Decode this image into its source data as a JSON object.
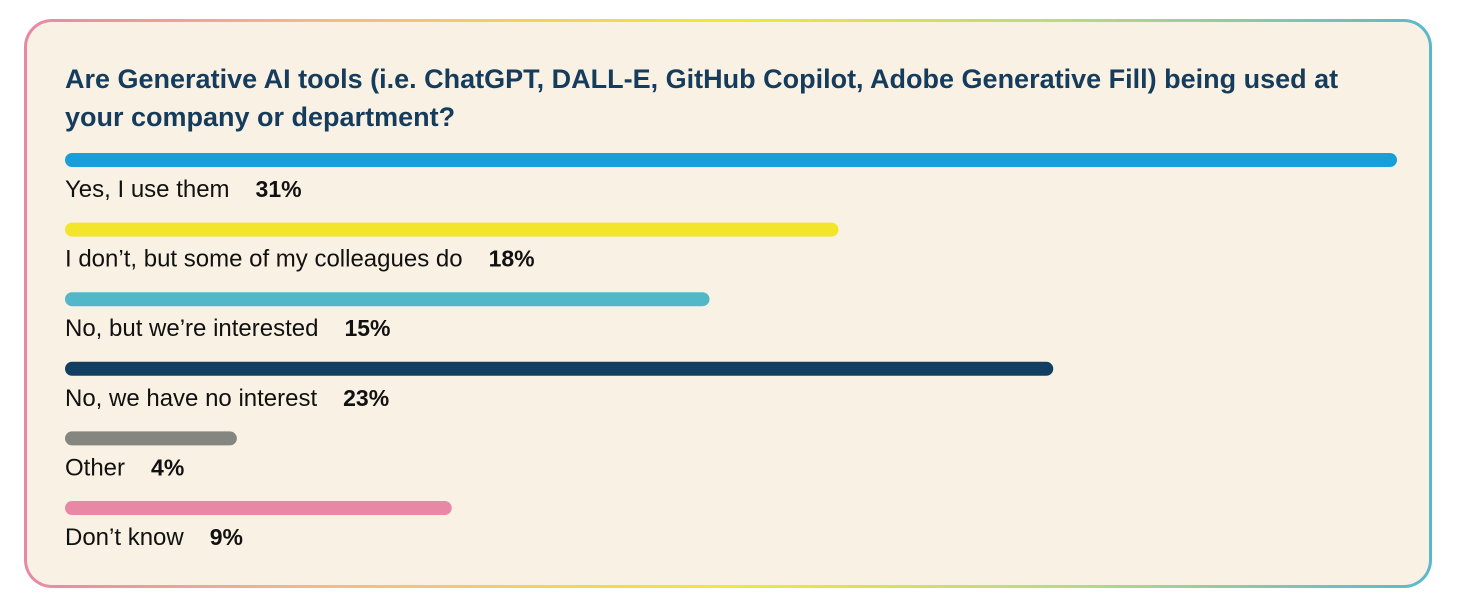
{
  "chart_data": {
    "type": "bar",
    "orientation": "horizontal",
    "title": "Are Generative AI tools (i.e. ChatGPT, DALL-E, GitHub Copilot, Adobe Generative Fill) being used at your company or department?",
    "categories": [
      "Yes, I use them",
      "I don’t, but some of my colleagues do",
      "No, but we’re interested",
      "No, we have no interest",
      "Other",
      "Don’t know"
    ],
    "values": [
      31,
      18,
      15,
      23,
      4,
      9
    ],
    "value_labels": [
      "31%",
      "18%",
      "15%",
      "23%",
      "4%",
      "9%"
    ],
    "unit": "%",
    "colors": [
      "#189fd9",
      "#f3e52a",
      "#52b7c9",
      "#123f61",
      "#868680",
      "#e987a6"
    ],
    "xlim": [
      0,
      31
    ],
    "grid": false,
    "legend": "none"
  },
  "colors": {
    "background": "#f9f2e4",
    "title": "#153c5c",
    "text": "#111111"
  }
}
